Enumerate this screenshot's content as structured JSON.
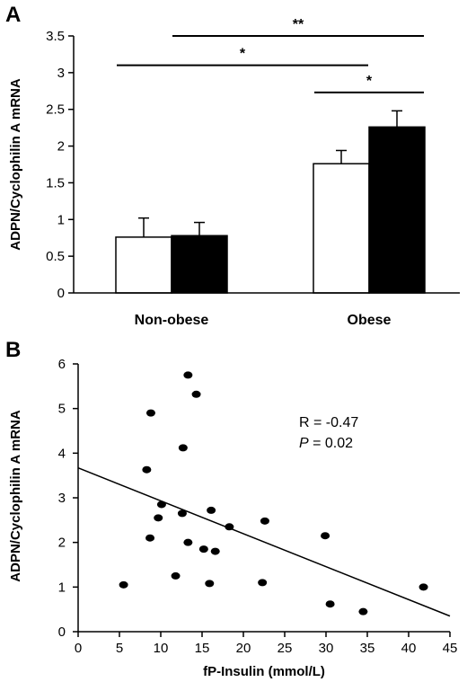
{
  "panels": {
    "a_label": "A",
    "b_label": "B"
  },
  "chart_data": [
    {
      "type": "bar",
      "panel": "A",
      "categories": [
        "Non-obese",
        "Obese"
      ],
      "series": [
        {
          "fill": "#ffffff",
          "values": [
            0.76,
            1.76
          ],
          "errors": [
            0.26,
            0.18
          ]
        },
        {
          "fill": "#000000",
          "values": [
            0.78,
            2.26
          ],
          "errors": [
            0.18,
            0.22
          ]
        }
      ],
      "ylabel": "ADPN/Cyclophilin A mRNA",
      "xlabel": "",
      "ylim": [
        0,
        3.5
      ],
      "yticks": [
        "0",
        "0.5",
        "1",
        "1.5",
        "2",
        "2.5",
        "3",
        "3.5"
      ],
      "significance": [
        {
          "from": "Non-obese white",
          "to": "Obese white",
          "label": "*",
          "y": 3.1
        },
        {
          "from": "Non-obese black",
          "to": "Obese black",
          "label": "**",
          "y": 3.5
        },
        {
          "from": "Obese white",
          "to": "Obese black",
          "label": "*",
          "y": 2.73
        }
      ],
      "grid": false
    },
    {
      "type": "scatter",
      "panel": "B",
      "xlabel": "fP-Insulin (mmol/L)",
      "ylabel": "ADPN/Cyclophilin A mRNA",
      "xlim": [
        0,
        45
      ],
      "ylim": [
        0,
        6
      ],
      "xticks": [
        "0",
        "5",
        "10",
        "15",
        "20",
        "25",
        "30",
        "35",
        "40",
        "45"
      ],
      "yticks": [
        "0",
        "1",
        "2",
        "3",
        "4",
        "5",
        "6"
      ],
      "points": [
        [
          5.5,
          1.05
        ],
        [
          8.3,
          3.63
        ],
        [
          8.7,
          2.1
        ],
        [
          8.8,
          4.9
        ],
        [
          9.7,
          2.55
        ],
        [
          10.1,
          2.85
        ],
        [
          11.8,
          1.25
        ],
        [
          12.6,
          2.65
        ],
        [
          12.7,
          4.12
        ],
        [
          13.3,
          5.75
        ],
        [
          13.3,
          2.0
        ],
        [
          14.3,
          5.32
        ],
        [
          15.2,
          1.85
        ],
        [
          15.9,
          1.08
        ],
        [
          16.1,
          2.72
        ],
        [
          16.6,
          1.8
        ],
        [
          18.3,
          2.35
        ],
        [
          22.3,
          1.1
        ],
        [
          22.6,
          2.48
        ],
        [
          29.9,
          2.15
        ],
        [
          30.5,
          0.62
        ],
        [
          34.5,
          0.45
        ],
        [
          41.8,
          1.0
        ]
      ],
      "regression": {
        "x": [
          0,
          45
        ],
        "y": [
          3.67,
          0.35
        ]
      },
      "annotation": {
        "r_text": "R = -0.47",
        "p_symbol": "P",
        "p_value": " = 0.02"
      },
      "grid": false
    }
  ]
}
